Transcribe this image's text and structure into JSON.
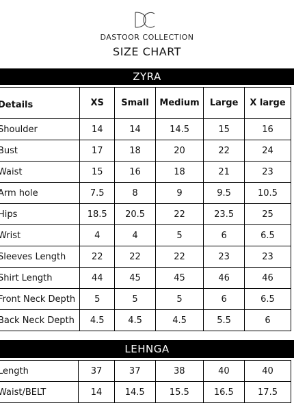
{
  "brand": {
    "monogram": "DC",
    "name": "DASTOOR COLLECTION"
  },
  "title": "SIZE CHART",
  "zyra": {
    "heading": "ZYRA",
    "header": [
      "Details",
      "XS",
      "Small",
      "Medium",
      "Large",
      "X large"
    ],
    "rows": [
      [
        "Shoulder",
        "14",
        "14",
        "14.5",
        "15",
        "16"
      ],
      [
        "Bust",
        "17",
        "18",
        "20",
        "22",
        "24"
      ],
      [
        "Waist",
        "15",
        "16",
        "18",
        "21",
        "23"
      ],
      [
        "Arm hole",
        "7.5",
        "8",
        "9",
        "9.5",
        "10.5"
      ],
      [
        "Hips",
        "18.5",
        "20.5",
        "22",
        "23.5",
        "25"
      ],
      [
        "Wrist",
        "4",
        "4",
        "5",
        "6",
        "6.5"
      ],
      [
        "Sleeves Length",
        "22",
        "22",
        "22",
        "23",
        "23"
      ],
      [
        "Shirt Length",
        "44",
        "45",
        "45",
        "46",
        "46"
      ],
      [
        "Front Neck Depth",
        "5",
        "5",
        "5",
        "6",
        "6.5"
      ],
      [
        "Back Neck Depth",
        "4.5",
        "4.5",
        "4.5",
        "5.5",
        "6"
      ]
    ]
  },
  "lehnga": {
    "heading": "LEHNGA",
    "rows": [
      [
        "Length",
        "37",
        "37",
        "38",
        "40",
        "40"
      ],
      [
        "Waist/BELT",
        "14",
        "14.5",
        "15.5",
        "16.5",
        "17.5"
      ]
    ]
  }
}
